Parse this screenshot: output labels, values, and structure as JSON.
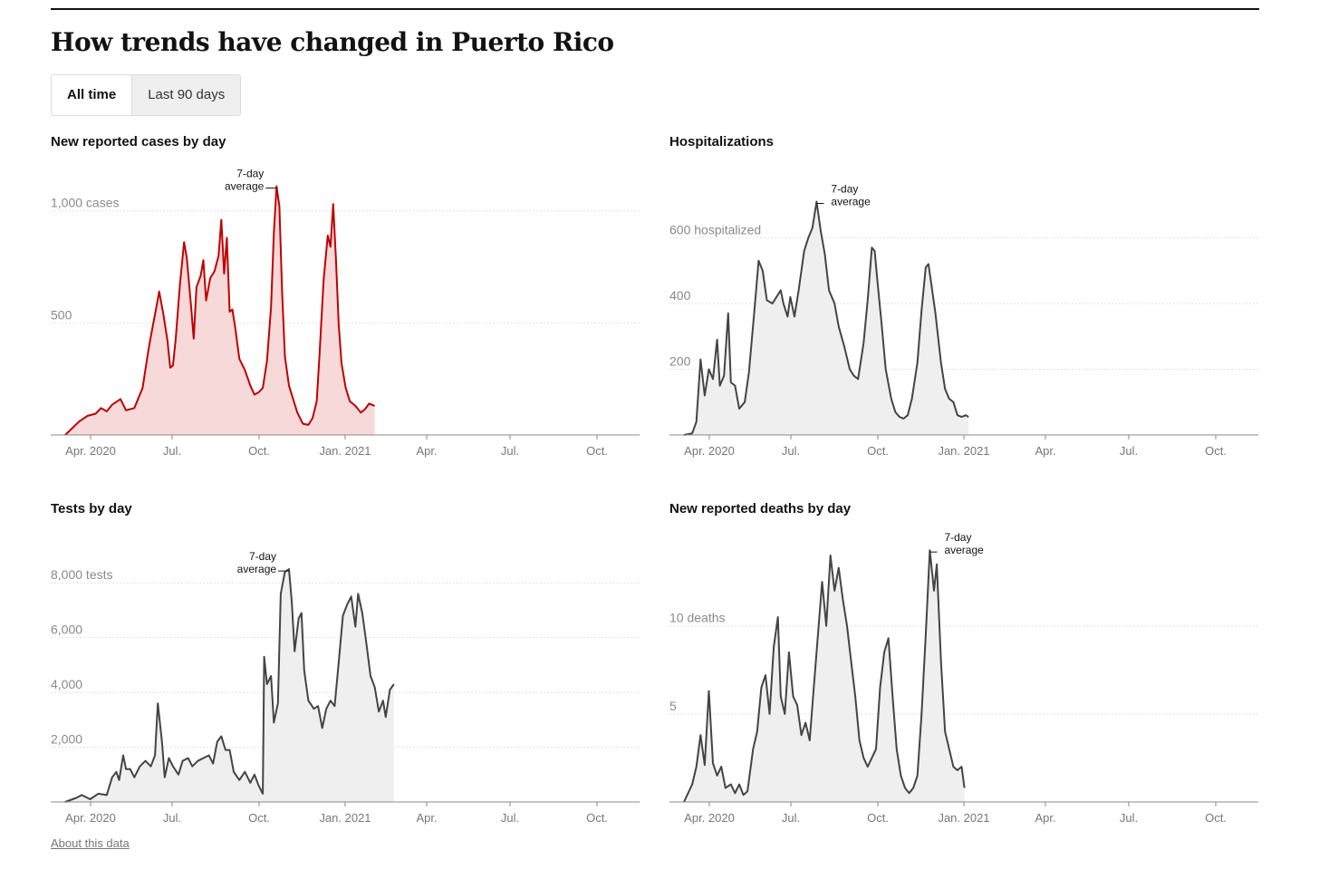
{
  "page": {
    "title": "How trends have changed in Puerto Rico",
    "toggles": [
      "All time",
      "Last 90 days"
    ],
    "about_link": "About this data",
    "annotation_lines": [
      "7-day",
      "average"
    ]
  },
  "chart_data": [
    {
      "id": "cases",
      "type": "area",
      "title": "New reported cases by day",
      "y_ticks": [
        {
          "value": 500,
          "label": "500"
        },
        {
          "value": 1000,
          "label": "1,000 cases"
        }
      ],
      "ylim": [
        0,
        1100
      ],
      "x_ticks": [
        "Apr. 2020",
        "Jul.",
        "Oct.",
        "Jan. 2021",
        "Apr.",
        "Jul.",
        "Oct."
      ],
      "line_color": "#c00000",
      "fill_color": "#f8d9d9",
      "annotation": {
        "text": "7-day average",
        "date_index": 4.1
      },
      "series": [
        [
          0,
          0
        ],
        [
          0.5,
          60
        ],
        [
          0.8,
          85
        ],
        [
          1.1,
          95
        ],
        [
          1.3,
          120
        ],
        [
          1.5,
          105
        ],
        [
          1.7,
          135
        ],
        [
          2.0,
          160
        ],
        [
          2.2,
          110
        ],
        [
          2.5,
          120
        ],
        [
          2.8,
          210
        ],
        [
          3.0,
          370
        ],
        [
          3.1,
          440
        ],
        [
          3.3,
          570
        ],
        [
          3.4,
          640
        ],
        [
          3.55,
          540
        ],
        [
          3.7,
          420
        ],
        [
          3.8,
          300
        ],
        [
          3.9,
          310
        ],
        [
          4.0,
          430
        ],
        [
          4.15,
          670
        ],
        [
          4.3,
          860
        ],
        [
          4.4,
          790
        ],
        [
          4.55,
          580
        ],
        [
          4.65,
          430
        ],
        [
          4.75,
          660
        ],
        [
          4.9,
          710
        ],
        [
          5.0,
          780
        ],
        [
          5.1,
          600
        ],
        [
          5.25,
          700
        ],
        [
          5.4,
          730
        ],
        [
          5.55,
          800
        ],
        [
          5.65,
          960
        ],
        [
          5.75,
          720
        ],
        [
          5.85,
          880
        ],
        [
          5.95,
          550
        ],
        [
          6.05,
          560
        ],
        [
          6.15,
          480
        ],
        [
          6.3,
          340
        ],
        [
          6.5,
          290
        ],
        [
          6.7,
          220
        ],
        [
          6.85,
          180
        ],
        [
          7.0,
          190
        ],
        [
          7.15,
          210
        ],
        [
          7.3,
          330
        ],
        [
          7.45,
          570
        ],
        [
          7.55,
          900
        ],
        [
          7.65,
          1110
        ],
        [
          7.75,
          1020
        ],
        [
          7.85,
          640
        ],
        [
          7.95,
          350
        ],
        [
          8.1,
          220
        ],
        [
          8.25,
          160
        ],
        [
          8.4,
          100
        ],
        [
          8.6,
          50
        ],
        [
          8.8,
          45
        ],
        [
          8.95,
          75
        ],
        [
          9.1,
          150
        ],
        [
          9.2,
          350
        ],
        [
          9.35,
          690
        ],
        [
          9.5,
          890
        ],
        [
          9.6,
          840
        ],
        [
          9.7,
          1030
        ],
        [
          9.8,
          780
        ],
        [
          9.9,
          490
        ],
        [
          10.0,
          320
        ],
        [
          10.15,
          210
        ],
        [
          10.3,
          150
        ],
        [
          10.5,
          130
        ],
        [
          10.7,
          100
        ],
        [
          10.85,
          115
        ],
        [
          11.0,
          140
        ],
        [
          11.2,
          130
        ]
      ],
      "x_range": [
        0,
        11.2
      ]
    },
    {
      "id": "hosp",
      "type": "area",
      "title": "Hospitalizations",
      "y_ticks": [
        {
          "value": 200,
          "label": "200"
        },
        {
          "value": 400,
          "label": "400"
        },
        {
          "value": 600,
          "label": "600 hospitalized"
        }
      ],
      "ylim": [
        0,
        750
      ],
      "x_ticks": [
        "Apr. 2020",
        "Jul.",
        "Oct.",
        "Jan. 2021",
        "Apr.",
        "Jul.",
        "Oct."
      ],
      "line_color": "#444444",
      "fill_color": "#efefef",
      "annotation": {
        "text": "7-day average",
        "date_index": 4.7
      },
      "series": [
        [
          0,
          0
        ],
        [
          0.3,
          5
        ],
        [
          0.45,
          40
        ],
        [
          0.6,
          230
        ],
        [
          0.75,
          120
        ],
        [
          0.9,
          200
        ],
        [
          1.05,
          170
        ],
        [
          1.2,
          290
        ],
        [
          1.3,
          150
        ],
        [
          1.45,
          180
        ],
        [
          1.6,
          370
        ],
        [
          1.7,
          160
        ],
        [
          1.85,
          150
        ],
        [
          2.0,
          80
        ],
        [
          2.2,
          100
        ],
        [
          2.35,
          190
        ],
        [
          2.55,
          380
        ],
        [
          2.7,
          530
        ],
        [
          2.85,
          500
        ],
        [
          3.0,
          410
        ],
        [
          3.2,
          400
        ],
        [
          3.35,
          420
        ],
        [
          3.5,
          440
        ],
        [
          3.6,
          400
        ],
        [
          3.75,
          360
        ],
        [
          3.85,
          420
        ],
        [
          4.0,
          360
        ],
        [
          4.15,
          440
        ],
        [
          4.35,
          560
        ],
        [
          4.5,
          600
        ],
        [
          4.65,
          630
        ],
        [
          4.8,
          710
        ],
        [
          4.95,
          620
        ],
        [
          5.1,
          550
        ],
        [
          5.25,
          440
        ],
        [
          5.45,
          400
        ],
        [
          5.6,
          330
        ],
        [
          5.8,
          270
        ],
        [
          6.0,
          200
        ],
        [
          6.15,
          180
        ],
        [
          6.3,
          170
        ],
        [
          6.5,
          280
        ],
        [
          6.65,
          410
        ],
        [
          6.8,
          570
        ],
        [
          6.9,
          560
        ],
        [
          7.0,
          470
        ],
        [
          7.15,
          340
        ],
        [
          7.3,
          200
        ],
        [
          7.5,
          110
        ],
        [
          7.65,
          70
        ],
        [
          7.8,
          55
        ],
        [
          7.95,
          50
        ],
        [
          8.1,
          60
        ],
        [
          8.25,
          110
        ],
        [
          8.45,
          220
        ],
        [
          8.6,
          380
        ],
        [
          8.75,
          510
        ],
        [
          8.85,
          520
        ],
        [
          8.95,
          460
        ],
        [
          9.1,
          370
        ],
        [
          9.3,
          220
        ],
        [
          9.45,
          140
        ],
        [
          9.6,
          110
        ],
        [
          9.75,
          100
        ],
        [
          9.9,
          60
        ],
        [
          10.05,
          55
        ],
        [
          10.2,
          60
        ],
        [
          10.3,
          55
        ]
      ],
      "x_range": [
        0,
        10.3
      ]
    },
    {
      "id": "tests",
      "type": "area",
      "title": "Tests by day",
      "y_ticks": [
        {
          "value": 2000,
          "label": "2,000"
        },
        {
          "value": 4000,
          "label": "4,000"
        },
        {
          "value": 6000,
          "label": "6,000"
        },
        {
          "value": 8000,
          "label": "8,000 tests"
        }
      ],
      "ylim": [
        0,
        9000
      ],
      "x_ticks": [
        "Apr. 2020",
        "Jul.",
        "Oct.",
        "Jan. 2021",
        "Apr.",
        "Jul.",
        "Oct."
      ],
      "line_color": "#444444",
      "fill_color": "#efefef",
      "annotation": {
        "text": "7-day average",
        "date_index": 4.05
      },
      "series": [
        [
          0,
          0
        ],
        [
          0.4,
          150
        ],
        [
          0.6,
          250
        ],
        [
          0.9,
          100
        ],
        [
          1.2,
          300
        ],
        [
          1.5,
          250
        ],
        [
          1.7,
          900
        ],
        [
          1.85,
          1100
        ],
        [
          1.95,
          800
        ],
        [
          2.1,
          1700
        ],
        [
          2.2,
          1200
        ],
        [
          2.35,
          1200
        ],
        [
          2.5,
          900
        ],
        [
          2.7,
          1300
        ],
        [
          2.9,
          1500
        ],
        [
          3.1,
          1300
        ],
        [
          3.25,
          1700
        ],
        [
          3.35,
          3600
        ],
        [
          3.5,
          2200
        ],
        [
          3.6,
          900
        ],
        [
          3.75,
          1600
        ],
        [
          3.9,
          1300
        ],
        [
          4.1,
          1000
        ],
        [
          4.25,
          1500
        ],
        [
          4.45,
          1600
        ],
        [
          4.6,
          1300
        ],
        [
          4.8,
          1500
        ],
        [
          5.0,
          1600
        ],
        [
          5.2,
          1700
        ],
        [
          5.35,
          1400
        ],
        [
          5.5,
          2200
        ],
        [
          5.65,
          2400
        ],
        [
          5.8,
          1900
        ],
        [
          5.95,
          1900
        ],
        [
          6.1,
          1100
        ],
        [
          6.3,
          800
        ],
        [
          6.5,
          1100
        ],
        [
          6.7,
          700
        ],
        [
          6.85,
          1000
        ],
        [
          7.0,
          600
        ],
        [
          7.15,
          300
        ],
        [
          7.2,
          5300
        ],
        [
          7.3,
          4300
        ],
        [
          7.45,
          4600
        ],
        [
          7.55,
          2900
        ],
        [
          7.7,
          3600
        ],
        [
          7.8,
          7600
        ],
        [
          7.95,
          8400
        ],
        [
          8.1,
          8500
        ],
        [
          8.2,
          7300
        ],
        [
          8.3,
          5500
        ],
        [
          8.45,
          6700
        ],
        [
          8.55,
          6900
        ],
        [
          8.65,
          4800
        ],
        [
          8.8,
          3700
        ],
        [
          9.0,
          3400
        ],
        [
          9.15,
          3500
        ],
        [
          9.3,
          2700
        ],
        [
          9.45,
          3400
        ],
        [
          9.6,
          3700
        ],
        [
          9.75,
          3500
        ],
        [
          9.9,
          5100
        ],
        [
          10.05,
          6800
        ],
        [
          10.2,
          7200
        ],
        [
          10.35,
          7500
        ],
        [
          10.5,
          6400
        ],
        [
          10.6,
          7600
        ],
        [
          10.75,
          6900
        ],
        [
          10.9,
          5800
        ],
        [
          11.05,
          4600
        ],
        [
          11.2,
          4200
        ],
        [
          11.35,
          3300
        ],
        [
          11.5,
          3700
        ],
        [
          11.6,
          3100
        ],
        [
          11.75,
          4100
        ],
        [
          11.9,
          4300
        ]
      ],
      "x_range": [
        0,
        11.9
      ]
    },
    {
      "id": "deaths",
      "type": "area",
      "title": "New reported deaths by day",
      "y_ticks": [
        {
          "value": 5,
          "label": "5"
        },
        {
          "value": 10,
          "label": "10 deaths"
        }
      ],
      "ylim": [
        0,
        14
      ],
      "x_ticks": [
        "Apr. 2020",
        "Jul.",
        "Oct.",
        "Jan. 2021",
        "Apr.",
        "Jul.",
        "Oct."
      ],
      "line_color": "#444444",
      "fill_color": "#efefef",
      "annotation": {
        "text": "7-day average",
        "date_index": 4.8
      },
      "series": [
        [
          0,
          0
        ],
        [
          0.3,
          1
        ],
        [
          0.45,
          2
        ],
        [
          0.6,
          3.8
        ],
        [
          0.75,
          2.1
        ],
        [
          0.9,
          6.3
        ],
        [
          1.05,
          2.2
        ],
        [
          1.2,
          1.5
        ],
        [
          1.35,
          2
        ],
        [
          1.5,
          0.8
        ],
        [
          1.7,
          1
        ],
        [
          1.85,
          0.5
        ],
        [
          2.0,
          1
        ],
        [
          2.15,
          0.4
        ],
        [
          2.3,
          0.6
        ],
        [
          2.5,
          3
        ],
        [
          2.65,
          4
        ],
        [
          2.8,
          6.5
        ],
        [
          2.95,
          7.2
        ],
        [
          3.1,
          5
        ],
        [
          3.25,
          8.8
        ],
        [
          3.4,
          10.5
        ],
        [
          3.5,
          6
        ],
        [
          3.65,
          5
        ],
        [
          3.8,
          8.5
        ],
        [
          3.95,
          6
        ],
        [
          4.1,
          5.5
        ],
        [
          4.25,
          3.8
        ],
        [
          4.4,
          4.5
        ],
        [
          4.55,
          3.5
        ],
        [
          4.7,
          6.5
        ],
        [
          4.85,
          9.5
        ],
        [
          5.0,
          12.5
        ],
        [
          5.15,
          10
        ],
        [
          5.3,
          14
        ],
        [
          5.45,
          12
        ],
        [
          5.6,
          13.3
        ],
        [
          5.75,
          11.5
        ],
        [
          5.9,
          10
        ],
        [
          6.05,
          8
        ],
        [
          6.2,
          6
        ],
        [
          6.35,
          3.5
        ],
        [
          6.5,
          2.5
        ],
        [
          6.65,
          2
        ],
        [
          6.8,
          2.5
        ],
        [
          6.95,
          3
        ],
        [
          7.1,
          6.5
        ],
        [
          7.25,
          8.5
        ],
        [
          7.4,
          9.3
        ],
        [
          7.55,
          6
        ],
        [
          7.7,
          3
        ],
        [
          7.85,
          1.5
        ],
        [
          8.0,
          0.8
        ],
        [
          8.15,
          0.5
        ],
        [
          8.3,
          0.8
        ],
        [
          8.45,
          1.5
        ],
        [
          8.6,
          5
        ],
        [
          8.75,
          9.5
        ],
        [
          8.9,
          14.3
        ],
        [
          9.05,
          12
        ],
        [
          9.15,
          13.5
        ],
        [
          9.3,
          8
        ],
        [
          9.45,
          4
        ],
        [
          9.6,
          3
        ],
        [
          9.75,
          2
        ],
        [
          9.9,
          1.8
        ],
        [
          10.05,
          2
        ],
        [
          10.15,
          0.8
        ]
      ],
      "x_range": [
        0,
        10.15
      ]
    }
  ]
}
